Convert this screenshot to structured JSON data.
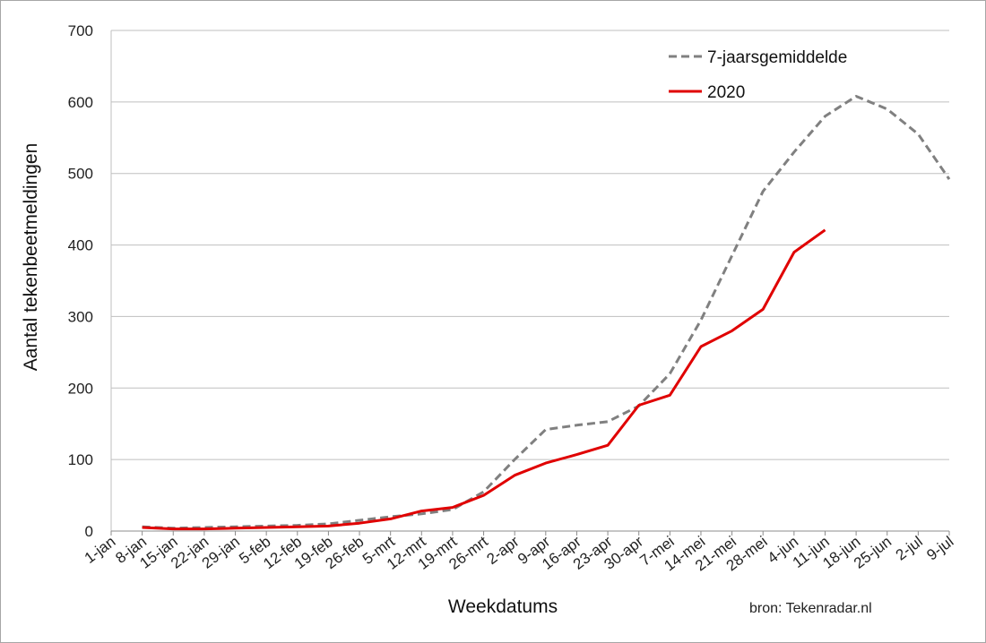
{
  "chart_data": {
    "type": "line",
    "title": "",
    "xlabel": "Weekdatums",
    "ylabel": "Aantal tekenbeetmeldingen",
    "ylim": [
      0,
      700
    ],
    "yticks": [
      0,
      100,
      200,
      300,
      400,
      500,
      600,
      700
    ],
    "grid": true,
    "legend_position": "top-right",
    "categories": [
      "1-jan",
      "8-jan",
      "15-jan",
      "22-jan",
      "29-jan",
      "5-feb",
      "12-feb",
      "19-feb",
      "26-feb",
      "5-mrt",
      "12-mrt",
      "19-mrt",
      "26-mrt",
      "2-apr",
      "9-apr",
      "16-apr",
      "23-apr",
      "30-apr",
      "7-mei",
      "14-mei",
      "21-mei",
      "28-mei",
      "4-jun",
      "11-jun",
      "18-jun",
      "25-jun",
      "2-jul",
      "9-jul"
    ],
    "series": [
      {
        "name": "7-jaarsgemiddelde",
        "color": "#808080",
        "dashed": true,
        "values": [
          null,
          6,
          4,
          5,
          6,
          7,
          8,
          10,
          15,
          20,
          24,
          30,
          55,
          100,
          142,
          148,
          153,
          175,
          220,
          295,
          385,
          475,
          530,
          580,
          608,
          590,
          555,
          492
        ]
      },
      {
        "name": "2020",
        "color": "#e00000",
        "dashed": false,
        "values": [
          null,
          5,
          3,
          3,
          4,
          5,
          6,
          7,
          11,
          17,
          28,
          33,
          50,
          78,
          95,
          107,
          120,
          176,
          190,
          258,
          280,
          310,
          390,
          421,
          null,
          null,
          null,
          null
        ]
      }
    ],
    "source": "bron: Tekenradar.nl"
  }
}
